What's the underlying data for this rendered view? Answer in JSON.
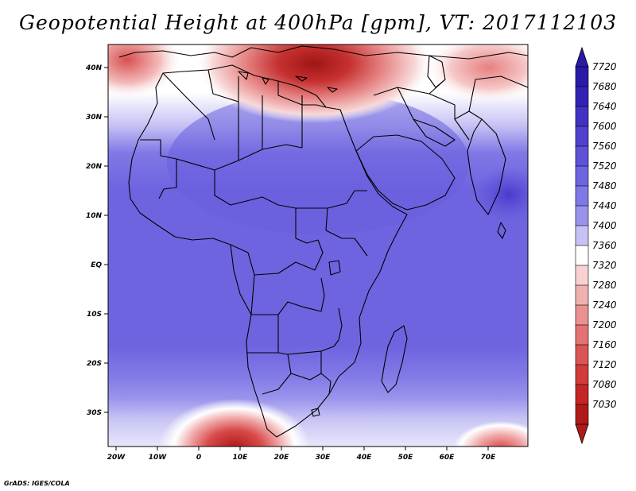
{
  "title": "Geopotential Height at 400hPa [gpm], VT: 2017112103",
  "credit": "GrADS: IGES/COLA",
  "map": {
    "lat_labels": [
      "40N",
      "30N",
      "20N",
      "10N",
      "EQ",
      "10S",
      "20S",
      "30S"
    ],
    "lon_labels": [
      "20W",
      "10W",
      "0",
      "10E",
      "20E",
      "30E",
      "40E",
      "50E",
      "60E",
      "70E"
    ],
    "colors": {
      "land_border": "#000000",
      "ocean_low": "#6e5fe0",
      "ridge_high": "#b01a1a"
    }
  },
  "colorbar": {
    "labels": [
      "7720",
      "7680",
      "7640",
      "7600",
      "7560",
      "7520",
      "7480",
      "7440",
      "7400",
      "7360",
      "7320",
      "7280",
      "7240",
      "7200",
      "7160",
      "7120",
      "7080",
      "7030"
    ],
    "colors": [
      "#2a1aa8",
      "#3322b5",
      "#4231c2",
      "#5141cf",
      "#5f52d9",
      "#6e64e0",
      "#8078e6",
      "#9a93ec",
      "#c6c3f4",
      "#ffffff",
      "#f8d2d2",
      "#f1b0b0",
      "#ea9090",
      "#e37272",
      "#dc5555",
      "#d33a3a",
      "#c42626",
      "#b01a1a"
    ]
  }
}
